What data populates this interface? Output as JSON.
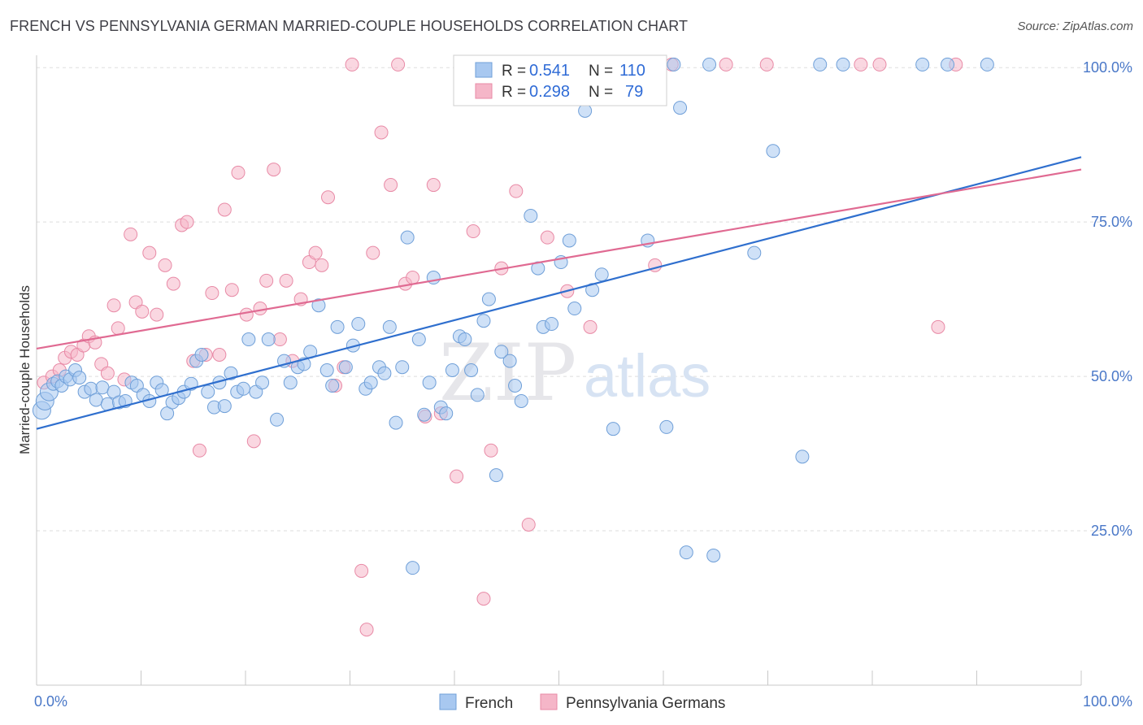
{
  "header": {
    "title": "FRENCH VS PENNSYLVANIA GERMAN MARRIED-COUPLE HOUSEHOLDS CORRELATION CHART",
    "source": "Source: ZipAtlas.com"
  },
  "watermark": {
    "zip": "ZIP",
    "atlas": "atlas"
  },
  "stats_legend": {
    "r_label": "R =",
    "n_label": "N =",
    "rows": [
      {
        "r": "0.541",
        "n": "110",
        "color": "#a8c8f0"
      },
      {
        "r": "0.298",
        "n": "79",
        "color": "#f5b6c8"
      }
    ]
  },
  "bottom_legend": [
    "French",
    "Pennsylvania Germans"
  ],
  "chart_data": {
    "type": "scatter",
    "title": "FRENCH VS PENNSYLVANIA GERMAN MARRIED-COUPLE HOUSEHOLDS CORRELATION CHART",
    "xlabel": "",
    "ylabel": "Married-couple Households",
    "xlim": [
      0,
      100
    ],
    "ylim": [
      0,
      102
    ],
    "x_tick_labels": [
      "0.0%",
      "100.0%"
    ],
    "y_tick_labels": [
      "25.0%",
      "50.0%",
      "75.0%",
      "100.0%"
    ],
    "y_ticks": [
      25,
      50,
      75,
      100
    ],
    "grid": "horizontal dashed",
    "legend": "bottom-center",
    "series": [
      {
        "name": "French",
        "color": "#a8c8f0",
        "stroke": "#6f9fd8",
        "r": 0.541,
        "n": 110,
        "trend": {
          "x": [
            0,
            100
          ],
          "y": [
            41.5,
            85.5
          ],
          "color": "#2f6fce"
        },
        "points": [
          [
            0.5,
            44.5
          ],
          [
            0.8,
            46.0
          ],
          [
            1.2,
            47.5
          ],
          [
            1.6,
            48.8
          ],
          [
            2.0,
            49.2
          ],
          [
            2.4,
            48.5
          ],
          [
            2.8,
            50.0
          ],
          [
            3.2,
            49.5
          ],
          [
            3.7,
            51.0
          ],
          [
            4.1,
            49.8
          ],
          [
            4.6,
            47.5
          ],
          [
            5.2,
            48.0
          ],
          [
            5.7,
            46.2
          ],
          [
            6.3,
            48.2
          ],
          [
            6.8,
            45.5
          ],
          [
            7.4,
            47.5
          ],
          [
            7.9,
            45.8
          ],
          [
            8.5,
            46.0
          ],
          [
            9.1,
            49.0
          ],
          [
            9.6,
            48.5
          ],
          [
            10.2,
            47.0
          ],
          [
            10.8,
            46.0
          ],
          [
            11.5,
            49.0
          ],
          [
            12.0,
            47.8
          ],
          [
            12.5,
            44.0
          ],
          [
            13.0,
            45.8
          ],
          [
            13.6,
            46.5
          ],
          [
            14.1,
            47.5
          ],
          [
            14.8,
            48.8
          ],
          [
            15.3,
            52.5
          ],
          [
            15.8,
            53.5
          ],
          [
            16.4,
            47.5
          ],
          [
            17.0,
            45.0
          ],
          [
            17.5,
            49.0
          ],
          [
            18.0,
            45.2
          ],
          [
            18.6,
            50.5
          ],
          [
            19.2,
            47.5
          ],
          [
            19.8,
            48.0
          ],
          [
            20.3,
            56.0
          ],
          [
            21.0,
            47.5
          ],
          [
            21.6,
            49.0
          ],
          [
            22.2,
            56.0
          ],
          [
            23.0,
            43.0
          ],
          [
            23.7,
            52.5
          ],
          [
            24.3,
            49.0
          ],
          [
            25.0,
            51.5
          ],
          [
            25.6,
            52.0
          ],
          [
            26.2,
            54.0
          ],
          [
            27.0,
            61.5
          ],
          [
            27.8,
            51.0
          ],
          [
            28.3,
            48.5
          ],
          [
            28.8,
            58.0
          ],
          [
            29.6,
            51.5
          ],
          [
            30.3,
            55.0
          ],
          [
            30.8,
            58.5
          ],
          [
            31.5,
            48.0
          ],
          [
            32.0,
            49.0
          ],
          [
            32.8,
            51.5
          ],
          [
            33.3,
            50.5
          ],
          [
            33.8,
            58.0
          ],
          [
            34.4,
            42.5
          ],
          [
            35.0,
            51.5
          ],
          [
            35.5,
            72.5
          ],
          [
            36.0,
            19.0
          ],
          [
            36.6,
            56.0
          ],
          [
            37.1,
            43.8
          ],
          [
            37.6,
            49.0
          ],
          [
            38.0,
            66.0
          ],
          [
            38.7,
            45.0
          ],
          [
            39.2,
            44.0
          ],
          [
            39.8,
            51.0
          ],
          [
            40.5,
            56.5
          ],
          [
            41.0,
            56.0
          ],
          [
            41.6,
            51.0
          ],
          [
            42.2,
            47.0
          ],
          [
            42.8,
            59.0
          ],
          [
            43.3,
            62.5
          ],
          [
            44.0,
            34.0
          ],
          [
            44.5,
            54.0
          ],
          [
            45.3,
            52.5
          ],
          [
            45.8,
            48.5
          ],
          [
            46.4,
            46.0
          ],
          [
            47.3,
            76.0
          ],
          [
            48.0,
            67.5
          ],
          [
            48.5,
            58.0
          ],
          [
            49.3,
            58.5
          ],
          [
            50.2,
            68.5
          ],
          [
            51.0,
            72.0
          ],
          [
            51.5,
            61.0
          ],
          [
            52.5,
            93.0
          ],
          [
            53.2,
            64.0
          ],
          [
            54.1,
            66.5
          ],
          [
            55.2,
            41.5
          ],
          [
            56.4,
            100.5
          ],
          [
            57.3,
            96.0
          ],
          [
            58.5,
            72.0
          ],
          [
            60.3,
            41.8
          ],
          [
            61.0,
            100.5
          ],
          [
            61.6,
            93.5
          ],
          [
            62.2,
            21.5
          ],
          [
            64.4,
            100.5
          ],
          [
            64.8,
            21.0
          ],
          [
            68.7,
            70.0
          ],
          [
            70.5,
            86.5
          ],
          [
            73.3,
            37.0
          ],
          [
            75.0,
            100.5
          ],
          [
            77.2,
            100.5
          ],
          [
            84.8,
            100.5
          ],
          [
            87.2,
            100.5
          ],
          [
            91.0,
            100.5
          ]
        ]
      },
      {
        "name": "Pennsylvania Germans",
        "color": "#f5b6c8",
        "stroke": "#e88aa6",
        "r": 0.298,
        "n": 79,
        "trend": {
          "x": [
            0,
            100
          ],
          "y": [
            54.5,
            83.5
          ],
          "color": "#e06a92"
        },
        "points": [
          [
            0.7,
            49.0
          ],
          [
            1.5,
            50.0
          ],
          [
            2.2,
            51.0
          ],
          [
            2.7,
            53.0
          ],
          [
            3.3,
            54.0
          ],
          [
            3.9,
            53.5
          ],
          [
            4.5,
            55.0
          ],
          [
            5.0,
            56.5
          ],
          [
            5.6,
            55.5
          ],
          [
            6.2,
            52.0
          ],
          [
            6.8,
            50.5
          ],
          [
            7.4,
            61.5
          ],
          [
            7.8,
            57.8
          ],
          [
            8.4,
            49.5
          ],
          [
            9.0,
            73.0
          ],
          [
            9.5,
            62.0
          ],
          [
            10.1,
            60.5
          ],
          [
            10.8,
            70.0
          ],
          [
            11.5,
            60.0
          ],
          [
            12.3,
            68.0
          ],
          [
            13.1,
            65.0
          ],
          [
            13.9,
            74.5
          ],
          [
            14.4,
            75.0
          ],
          [
            15.0,
            52.5
          ],
          [
            15.6,
            38.0
          ],
          [
            16.2,
            53.5
          ],
          [
            16.8,
            63.5
          ],
          [
            17.5,
            53.5
          ],
          [
            18.0,
            77.0
          ],
          [
            18.7,
            64.0
          ],
          [
            19.3,
            83.0
          ],
          [
            20.1,
            60.0
          ],
          [
            20.8,
            39.5
          ],
          [
            21.4,
            61.0
          ],
          [
            22.0,
            65.5
          ],
          [
            22.7,
            83.5
          ],
          [
            23.3,
            56.0
          ],
          [
            23.9,
            65.5
          ],
          [
            24.5,
            52.5
          ],
          [
            25.3,
            62.5
          ],
          [
            26.1,
            68.5
          ],
          [
            26.7,
            70.0
          ],
          [
            27.3,
            68.0
          ],
          [
            27.9,
            79.0
          ],
          [
            28.6,
            48.5
          ],
          [
            29.4,
            51.5
          ],
          [
            30.2,
            100.5
          ],
          [
            31.1,
            18.5
          ],
          [
            31.6,
            9.0
          ],
          [
            32.2,
            70.0
          ],
          [
            33.0,
            89.5
          ],
          [
            33.9,
            81.0
          ],
          [
            34.6,
            100.5
          ],
          [
            35.3,
            65.0
          ],
          [
            36.0,
            66.0
          ],
          [
            37.2,
            43.5
          ],
          [
            38.0,
            81.0
          ],
          [
            38.7,
            44.0
          ],
          [
            40.2,
            33.8
          ],
          [
            41.8,
            73.5
          ],
          [
            42.8,
            14.0
          ],
          [
            43.5,
            38.0
          ],
          [
            44.5,
            67.5
          ],
          [
            45.9,
            80.0
          ],
          [
            47.1,
            26.0
          ],
          [
            48.9,
            72.5
          ],
          [
            50.8,
            63.8
          ],
          [
            53.0,
            58.0
          ],
          [
            54.7,
            100.5
          ],
          [
            56.0,
            100.5
          ],
          [
            57.5,
            100.5
          ],
          [
            59.2,
            68.0
          ],
          [
            60.8,
            100.5
          ],
          [
            66.0,
            100.5
          ],
          [
            69.9,
            100.5
          ],
          [
            78.9,
            100.5
          ],
          [
            80.7,
            100.5
          ],
          [
            86.3,
            58.0
          ],
          [
            88.0,
            100.5
          ]
        ]
      }
    ]
  }
}
